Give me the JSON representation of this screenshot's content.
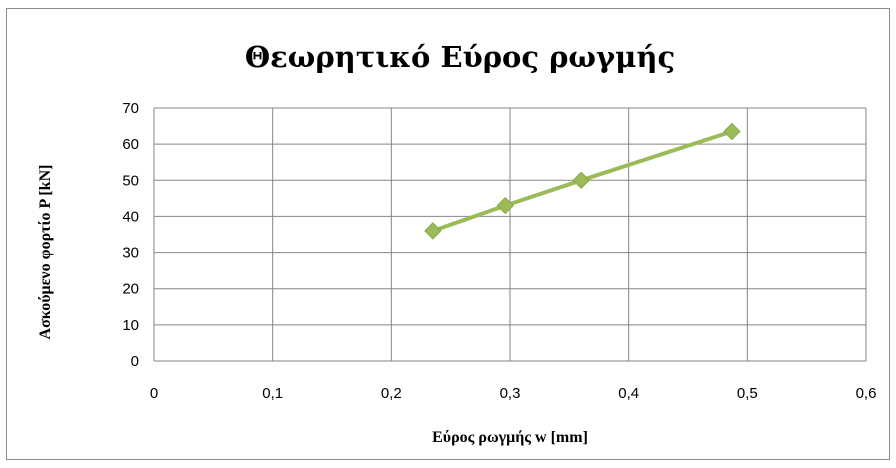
{
  "chart_data": {
    "type": "line",
    "title": "Θεωρητικό Εύρος ρωγμής",
    "xlabel": "Εύρος ρωγμής  w [mm]",
    "ylabel": "Ασκούμενο φορτίο P [kN]",
    "xlim": [
      0,
      0.6
    ],
    "ylim": [
      0,
      70
    ],
    "xticks": [
      "0",
      "0,1",
      "0,2",
      "0,3",
      "0,4",
      "0,5",
      "0,6"
    ],
    "yticks": [
      "0",
      "10",
      "20",
      "30",
      "40",
      "50",
      "60",
      "70"
    ],
    "grid": true,
    "legend": "none",
    "series": [
      {
        "color": "#9bbb59",
        "marker": "diamond",
        "x": [
          0.235,
          0.296,
          0.36,
          0.487
        ],
        "y": [
          36,
          43,
          50,
          63.5
        ]
      }
    ]
  }
}
